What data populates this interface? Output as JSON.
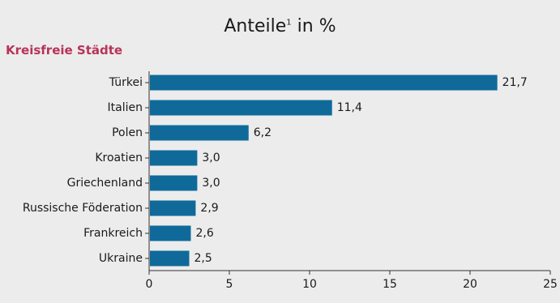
{
  "chart_data": {
    "type": "bar",
    "orientation": "horizontal",
    "title_main": "Anteile",
    "title_sup": "1",
    "title_suffix": "in %",
    "group_label": "Kreisfreie Städte",
    "categories": [
      "Türkei",
      "Italien",
      "Polen",
      "Kroatien",
      "Griechenland",
      "Russische Föderation",
      "Frankreich",
      "Ukraine"
    ],
    "values": [
      21.7,
      11.4,
      6.2,
      3.0,
      3.0,
      2.9,
      2.6,
      2.5
    ],
    "value_labels": [
      "21,7",
      "11,4",
      "6,2",
      "3,0",
      "3,0",
      "2,9",
      "2,6",
      "2,5"
    ],
    "xlim": [
      0,
      25
    ],
    "xticks": [
      0,
      5,
      10,
      15,
      20,
      25
    ],
    "bar_color": "#0f6a9a",
    "grid": false,
    "legend": "none"
  }
}
